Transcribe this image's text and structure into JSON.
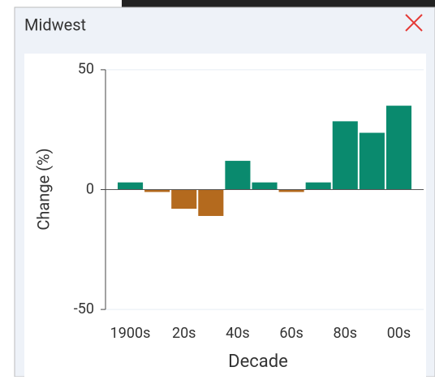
{
  "panel_title": "Midwest",
  "chart_data": {
    "type": "bar",
    "x_label": "Decade",
    "y_label": "Change (%)",
    "categories": [
      "1900s",
      null,
      "20s",
      null,
      "40s",
      null,
      "60s",
      null,
      "80s",
      null,
      "00s"
    ],
    "values": [
      3,
      -1,
      -8,
      -11,
      12,
      3,
      -1,
      3,
      28.5,
      23.7,
      35
    ],
    "positive_color": "#0a8a6e",
    "negative_color": "#b46a1e",
    "ylim": [
      -52,
      52
    ],
    "yticks": [
      -50,
      0,
      50
    ],
    "grid": true
  }
}
